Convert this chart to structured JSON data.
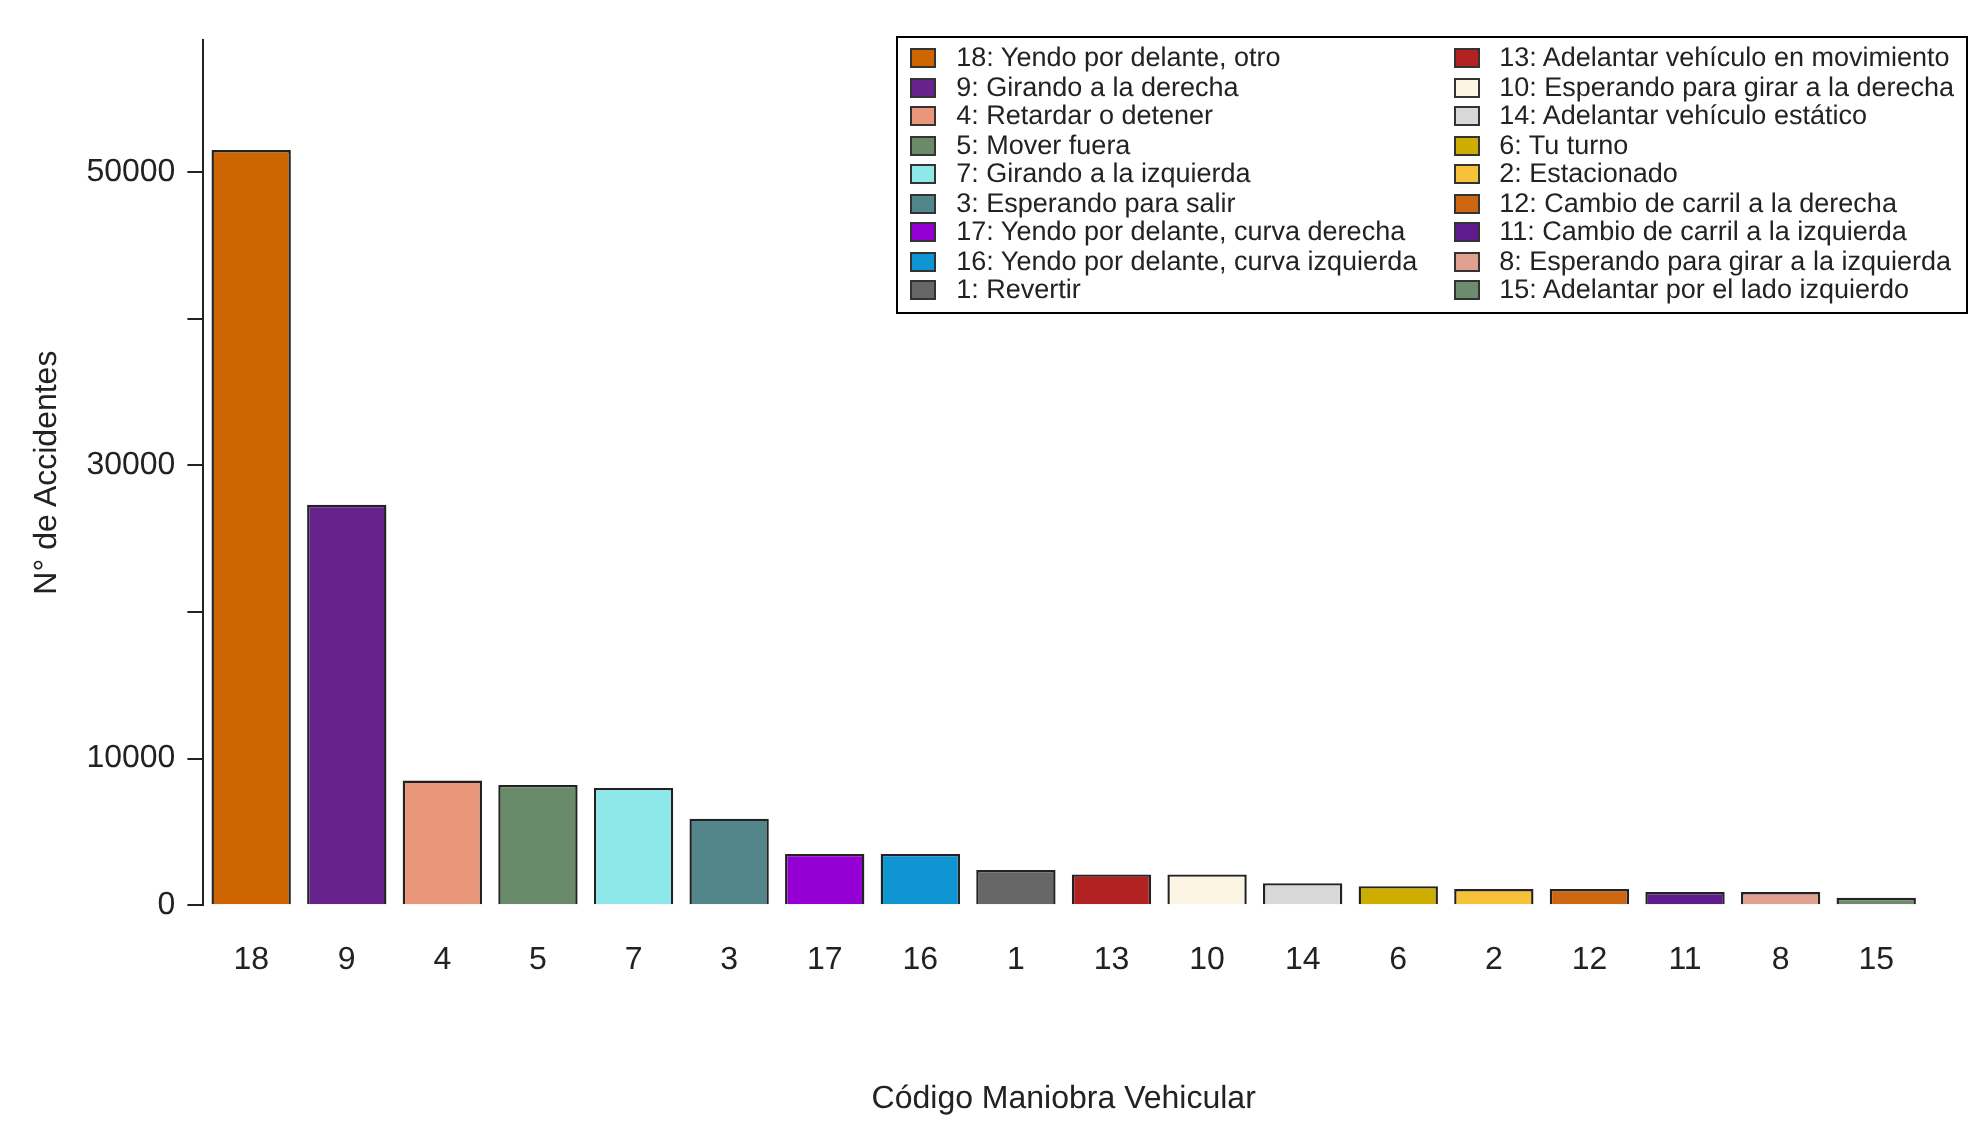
{
  "chart_data": {
    "type": "bar",
    "xlabel": "Código Maniobra Vehicular",
    "ylabel": "N° de Accidentes",
    "categories": [
      "18",
      "9",
      "4",
      "5",
      "7",
      "3",
      "17",
      "16",
      "1",
      "13",
      "10",
      "14",
      "6",
      "2",
      "12",
      "11",
      "8",
      "15"
    ],
    "ylim": [
      0,
      59000
    ],
    "yticks": [
      0,
      {
        "value": 10000,
        "label": "10000"
      },
      {
        "value": 20000,
        "label": null
      },
      30000,
      {
        "value": 40000,
        "label": null
      },
      50000
    ],
    "grid": false,
    "legend": "top right",
    "stacked": true,
    "series": [
      {
        "name": "18: Yendo por delante, otro",
        "color": "#cd6600",
        "values": [
          51500,
          null,
          null,
          null,
          null,
          null,
          null,
          null,
          null,
          null,
          null,
          null,
          null,
          null,
          null,
          null,
          null,
          null
        ]
      },
      {
        "name": "9: Girando a la derecha",
        "color": "#68228b",
        "values": [
          null,
          27300,
          null,
          null,
          null,
          null,
          null,
          null,
          null,
          null,
          null,
          null,
          null,
          null,
          null,
          null,
          null,
          null
        ]
      },
      {
        "name": "4: Retardar o detener",
        "color": "#e9967a",
        "values": [
          null,
          null,
          8500,
          null,
          null,
          null,
          null,
          null,
          null,
          null,
          null,
          null,
          null,
          null,
          null,
          null,
          null,
          null
        ]
      },
      {
        "name": "5: Mover fuera",
        "color": "#698b69",
        "values": [
          null,
          null,
          null,
          8200,
          null,
          null,
          null,
          null,
          null,
          null,
          null,
          null,
          null,
          null,
          null,
          null,
          null,
          null
        ]
      },
      {
        "name": "7: Girando a la izquierda",
        "color": "#8ee8ea",
        "values": [
          null,
          null,
          null,
          null,
          8000,
          null,
          null,
          null,
          null,
          null,
          null,
          null,
          null,
          null,
          null,
          null,
          null,
          null
        ]
      },
      {
        "name": "3: Esperando para salir",
        "color": "#53868b",
        "values": [
          null,
          null,
          null,
          null,
          null,
          5900,
          null,
          null,
          null,
          null,
          null,
          null,
          null,
          null,
          null,
          null,
          null,
          null
        ]
      },
      {
        "name": "17: Yendo por delante, curva derecha",
        "color": "#9400d3",
        "values": [
          null,
          null,
          null,
          null,
          null,
          null,
          3500,
          null,
          null,
          null,
          null,
          null,
          null,
          null,
          null,
          null,
          null,
          null
        ]
      },
      {
        "name": "16: Yendo por delante, curva izquierda",
        "color": "#0f96d2",
        "values": [
          null,
          null,
          null,
          null,
          null,
          null,
          null,
          3500,
          null,
          null,
          null,
          null,
          null,
          null,
          null,
          null,
          null,
          null
        ]
      },
      {
        "name": "1: Revertir",
        "color": "#666666",
        "values": [
          null,
          null,
          null,
          null,
          null,
          null,
          null,
          null,
          2400,
          null,
          null,
          null,
          null,
          null,
          null,
          null,
          null,
          null
        ]
      },
      {
        "name": "13: Adelantar vehículo en movimiento",
        "color": "#b22222",
        "values": [
          null,
          null,
          null,
          null,
          null,
          null,
          null,
          null,
          null,
          2100,
          null,
          null,
          null,
          null,
          null,
          null,
          null,
          null
        ]
      },
      {
        "name": "10: Esperando para girar a la derecha",
        "color": "#fcf5e3",
        "values": [
          null,
          null,
          null,
          null,
          null,
          null,
          null,
          null,
          null,
          null,
          2100,
          null,
          null,
          null,
          null,
          null,
          null,
          null
        ]
      },
      {
        "name": "14: Adelantar vehículo estático",
        "color": "#d8d8d8",
        "values": [
          null,
          null,
          null,
          null,
          null,
          null,
          null,
          null,
          null,
          null,
          null,
          1500,
          null,
          null,
          null,
          null,
          null,
          null
        ]
      },
      {
        "name": "6: Tu turno",
        "color": "#cdad00",
        "values": [
          null,
          null,
          null,
          null,
          null,
          null,
          null,
          null,
          null,
          null,
          null,
          null,
          1300,
          null,
          null,
          null,
          null,
          null
        ]
      },
      {
        "name": "2: Estacionado",
        "color": "#f8c13a",
        "values": [
          null,
          null,
          null,
          null,
          null,
          null,
          null,
          null,
          null,
          null,
          null,
          null,
          null,
          1100,
          null,
          null,
          null,
          null
        ]
      },
      {
        "name": "12: Cambio de carril a la derecha",
        "color": "#cd6610",
        "values": [
          null,
          null,
          null,
          null,
          null,
          null,
          null,
          null,
          null,
          null,
          null,
          null,
          null,
          null,
          1100,
          null,
          null,
          null
        ]
      },
      {
        "name": "11: Cambio de carril a la izquierda",
        "color": "#5d1b8b",
        "values": [
          null,
          null,
          null,
          null,
          null,
          null,
          null,
          null,
          null,
          null,
          null,
          null,
          null,
          null,
          null,
          900,
          null,
          null
        ]
      },
      {
        "name": "8: Esperando para girar a la izquierda",
        "color": "#e0a090",
        "values": [
          null,
          null,
          null,
          null,
          null,
          null,
          null,
          null,
          null,
          null,
          null,
          null,
          null,
          null,
          null,
          null,
          900,
          null
        ]
      },
      {
        "name": "15: Adelantar por el lado izquierdo",
        "color": "#6e8b6e",
        "values": [
          null,
          null,
          null,
          null,
          null,
          null,
          null,
          null,
          null,
          null,
          null,
          null,
          null,
          null,
          null,
          null,
          null,
          500
        ]
      }
    ]
  }
}
